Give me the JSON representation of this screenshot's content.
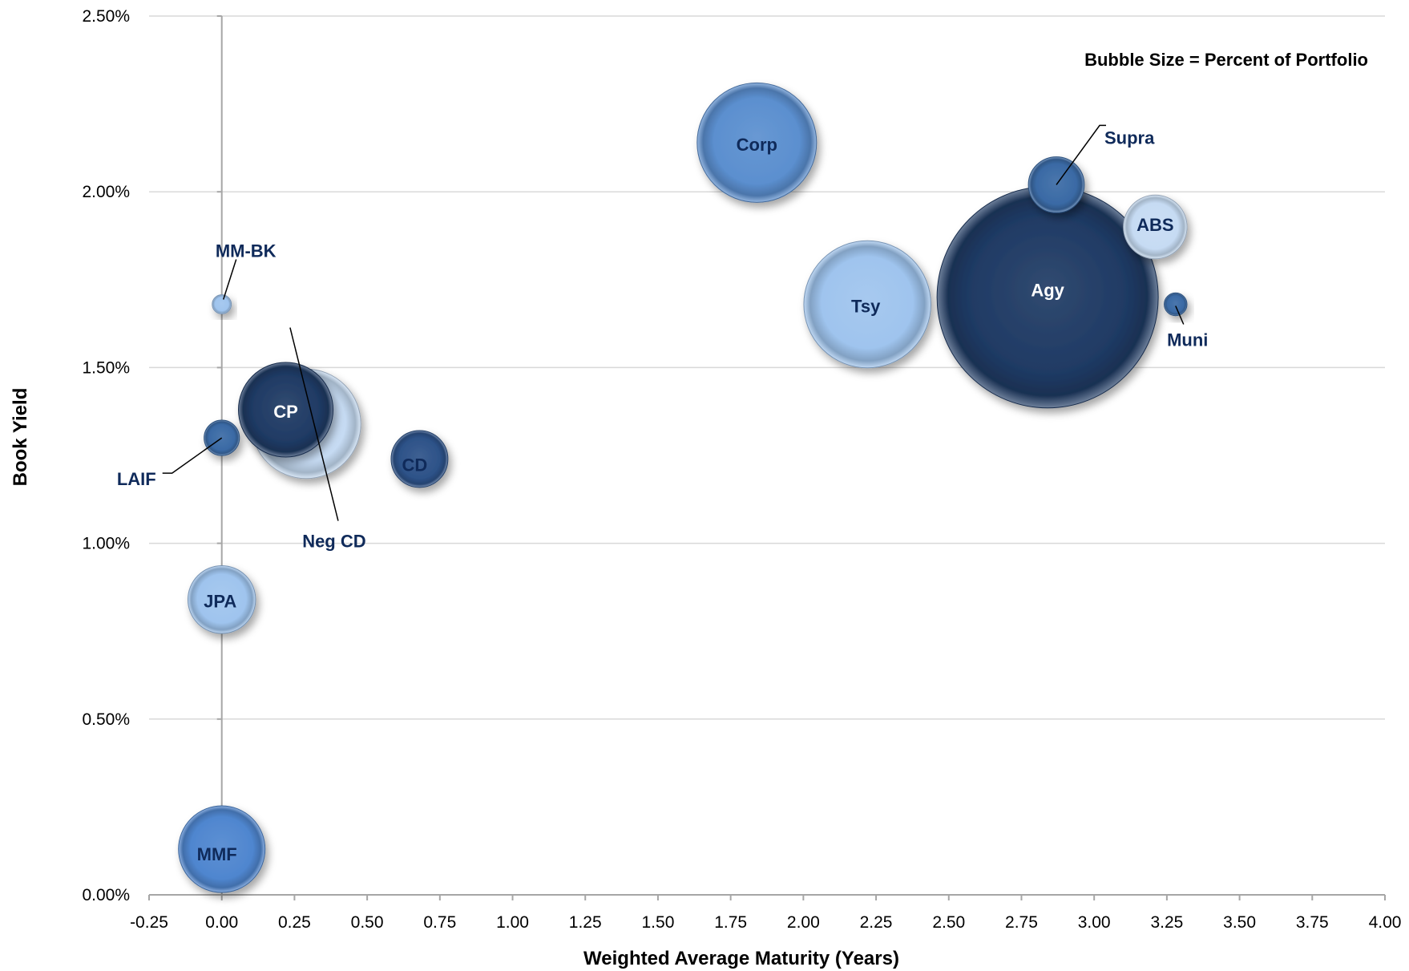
{
  "chart_data": {
    "type": "bubble",
    "title": "",
    "xlabel": "Weighted Average Maturity (Years)",
    "ylabel": "Book Yield",
    "annotation": "Bubble Size = Percent of Portfolio",
    "xlim": [
      -0.25,
      4.0
    ],
    "ylim": [
      0.0,
      0.025
    ],
    "x_ticks": [
      "-0.25",
      "0.00",
      "0.25",
      "0.50",
      "0.75",
      "1.00",
      "1.25",
      "1.50",
      "1.75",
      "2.00",
      "2.25",
      "2.50",
      "2.75",
      "3.00",
      "3.25",
      "3.50",
      "3.75",
      "4.00"
    ],
    "y_ticks": [
      "0.00%",
      "0.50%",
      "1.00%",
      "1.50%",
      "2.00%",
      "2.50%"
    ],
    "grid": "horizontal",
    "points": [
      {
        "name": "Neg CD",
        "x": 0.29,
        "y": 0.0134,
        "size": 11.5,
        "color": "#c6dbf3",
        "label_color": "#0f2a5a"
      },
      {
        "name": "CP",
        "x": 0.22,
        "y": 0.0138,
        "size": 8.6,
        "color": "#1f3a64",
        "label_color": "#ffffff"
      },
      {
        "name": "Corp",
        "x": 1.84,
        "y": 0.0214,
        "size": 13.7,
        "color": "#5b8fcf",
        "label_color": "#0f2a5a"
      },
      {
        "name": "Tsy",
        "x": 2.22,
        "y": 0.0168,
        "size": 15.5,
        "color": "#9fc4ee",
        "label_color": "#0f2a5a"
      },
      {
        "name": "Agy",
        "x": 2.84,
        "y": 0.017,
        "size": 47.0,
        "color": "#1f3a64",
        "label_color": "#ffffff"
      },
      {
        "name": "Supra",
        "x": 2.87,
        "y": 0.0202,
        "size": 3.0,
        "color": "#3a6aa5",
        "label_color": "#0f2a5a"
      },
      {
        "name": "ABS",
        "x": 3.21,
        "y": 0.019,
        "size": 3.9,
        "color": "#c6dbf3",
        "label_color": "#0f2a5a"
      },
      {
        "name": "Muni",
        "x": 3.28,
        "y": 0.0168,
        "size": 0.5,
        "color": "#3a6aa5",
        "label_color": "#0f2a5a"
      },
      {
        "name": "MM-BK",
        "x": 0.0,
        "y": 0.0168,
        "size": 0.35,
        "color": "#9fc4ee",
        "label_color": "#0f2a5a"
      },
      {
        "name": "LAIF",
        "x": 0.0,
        "y": 0.013,
        "size": 1.2,
        "color": "#3a6aa5",
        "label_color": "#0f2a5a"
      },
      {
        "name": "CD",
        "x": 0.68,
        "y": 0.0124,
        "size": 3.1,
        "color": "#2d5288",
        "label_color": "#0f2a5a"
      },
      {
        "name": "JPA",
        "x": 0.0,
        "y": 0.0084,
        "size": 4.4,
        "color": "#9fc4ee",
        "label_color": "#0f2a5a"
      },
      {
        "name": "MMF",
        "x": 0.0,
        "y": 0.0013,
        "size": 7.2,
        "color": "#4f86cf",
        "label_color": "#0f2a5a"
      }
    ]
  }
}
